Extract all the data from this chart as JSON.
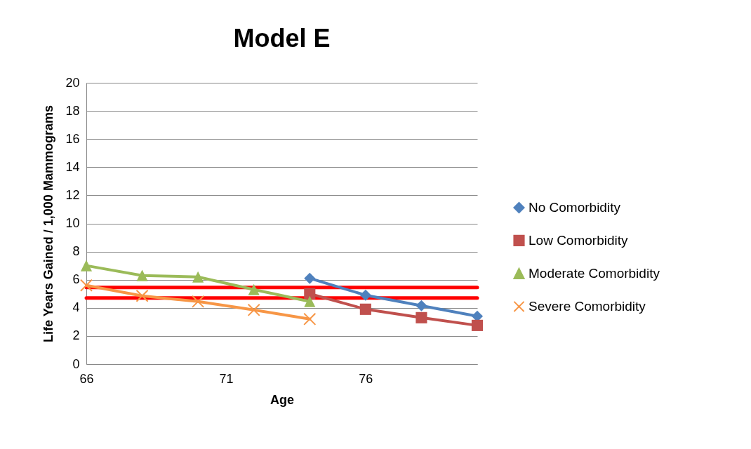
{
  "chart_data": {
    "type": "line",
    "title": "Model E",
    "xlabel": "Age",
    "ylabel": "Life Years Gained / 1,000 Mammograms",
    "xlim": [
      66,
      80
    ],
    "xticks": [
      66,
      71,
      76
    ],
    "ylim": [
      0,
      20
    ],
    "yticks": [
      0,
      2,
      4,
      6,
      8,
      10,
      12,
      14,
      16,
      18,
      20
    ],
    "grid": "y",
    "legend": "right",
    "series": [
      {
        "name": "No Comorbidity",
        "color": "#4f81bd",
        "marker": "diamond",
        "x": [
          74,
          76,
          78,
          80
        ],
        "values": [
          6.1,
          4.9,
          4.15,
          3.4
        ]
      },
      {
        "name": "Low Comorbidity",
        "color": "#c0504d",
        "marker": "square",
        "x": [
          74,
          76,
          78,
          80
        ],
        "values": [
          5.0,
          3.9,
          3.3,
          2.75
        ]
      },
      {
        "name": "Moderate Comorbidity",
        "color": "#9bbb59",
        "marker": "triangle",
        "x": [
          66,
          68,
          70,
          72,
          74
        ],
        "values": [
          7.0,
          6.3,
          6.2,
          5.3,
          4.45
        ]
      },
      {
        "name": "Severe Comorbidity",
        "color": "#f79646",
        "marker": "cross",
        "x": [
          66,
          68,
          70,
          72,
          74
        ],
        "values": [
          5.6,
          4.85,
          4.45,
          3.85,
          3.2
        ]
      }
    ],
    "ref_lines": [
      {
        "axis": "y",
        "value": 5.45,
        "color": "#ff0000"
      },
      {
        "axis": "y",
        "value": 4.7,
        "color": "#ff0000"
      }
    ]
  }
}
